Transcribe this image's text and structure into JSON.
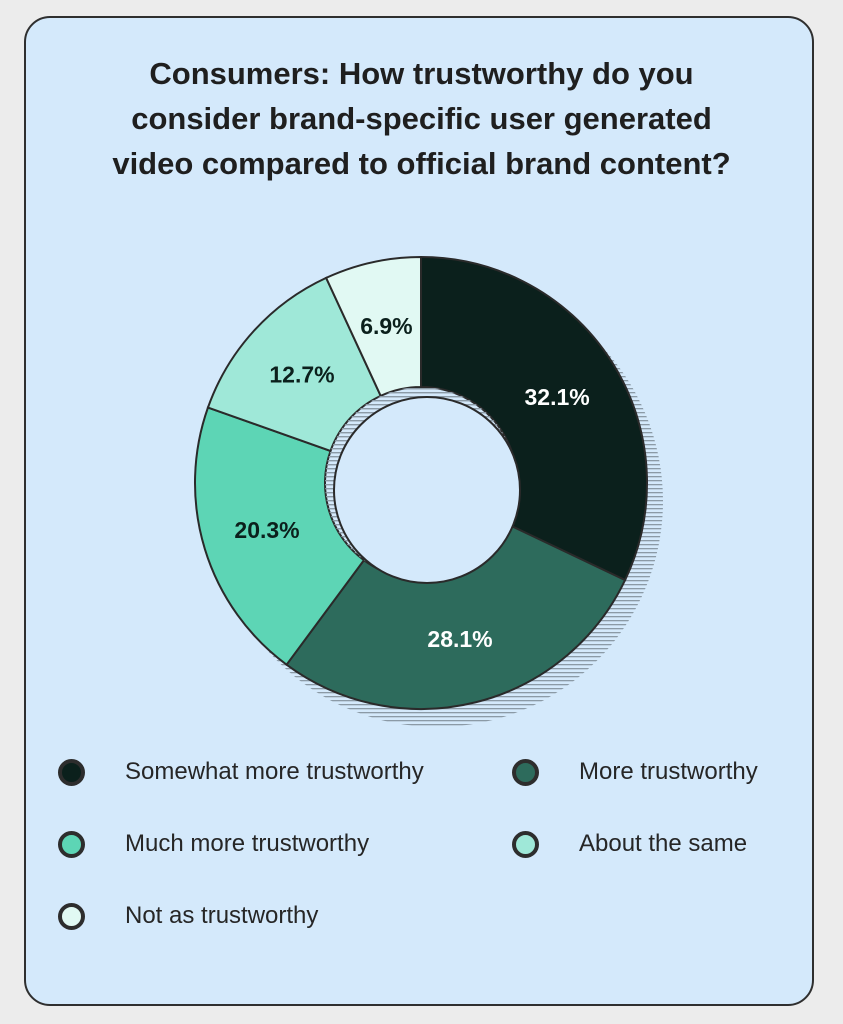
{
  "title_lines": [
    "Consumers: How trustworthy do you",
    "consider brand-specific user generated",
    "video compared to official brand content?"
  ],
  "colors": {
    "background": "#d4e9fb",
    "somewhat_more": "#0b201c",
    "more": "#2d6b5c",
    "much_more": "#5dd5b5",
    "about_same": "#9fe8d8",
    "not_as": "#e1f9f3"
  },
  "chart_data": {
    "type": "pie",
    "variant": "donut",
    "title": "Consumers: How trustworthy do you consider brand-specific user generated video compared to official brand content?",
    "categories": [
      "Somewhat more trustworthy",
      "More trustworthy",
      "Much more trustworthy",
      "About the same",
      "Not as trustworthy"
    ],
    "values": [
      32.1,
      28.1,
      20.3,
      12.7,
      6.9
    ],
    "labels": [
      "32.1%",
      "28.1%",
      "20.3%",
      "12.7%",
      "6.9%"
    ],
    "colors": [
      "#0b201c",
      "#2d6b5c",
      "#5dd5b5",
      "#9fe8d8",
      "#e1f9f3"
    ],
    "label_colors": [
      "#ffffff",
      "#ffffff",
      "#0b201c",
      "#0b201c",
      "#0b201c"
    ],
    "legend_position": "bottom"
  },
  "legend": [
    {
      "label": "Somewhat more trustworthy",
      "color": "#0b201c"
    },
    {
      "label": "More trustworthy",
      "color": "#2d6b5c"
    },
    {
      "label": "Much more trustworthy",
      "color": "#5dd5b5"
    },
    {
      "label": "About the same",
      "color": "#9fe8d8"
    },
    {
      "label": "Not as trustworthy",
      "color": "#e1f9f3"
    }
  ]
}
